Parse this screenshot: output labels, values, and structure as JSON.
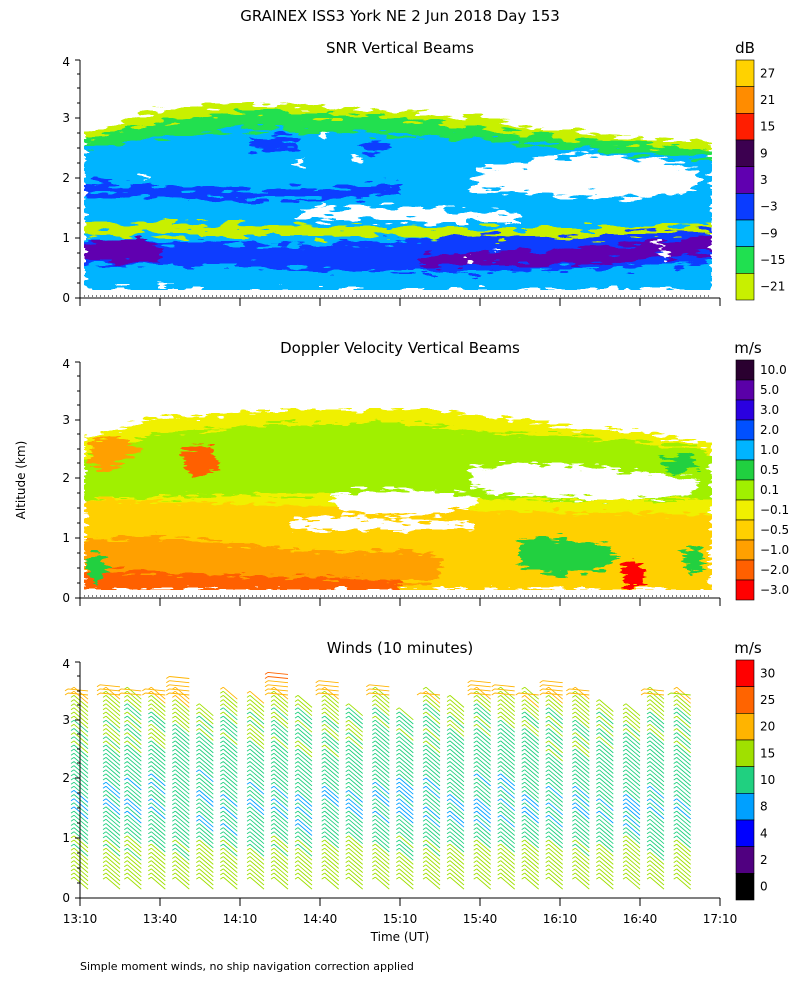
{
  "title": "GRAINEX ISS3 York NE   2 Jun 2018 Day 153",
  "ylabel": "Altitude (km)",
  "xlabel": "Time (UT)",
  "footnote": "Simple moment winds, no ship navigation correction applied",
  "x_ticks": [
    "13:10",
    "13:40",
    "14:10",
    "14:40",
    "15:10",
    "15:40",
    "16:10",
    "16:40",
    "17:10"
  ],
  "y_ticks": [
    "0",
    "1",
    "2",
    "3",
    "4"
  ],
  "chart_data": [
    {
      "type": "heatmap",
      "title": "SNR Vertical Beams",
      "unit": "dB",
      "xlim": [
        "13:10",
        "17:10"
      ],
      "ylim": [
        0,
        4
      ],
      "colorbar": {
        "labels": [
          "27",
          "21",
          "15",
          "9",
          "3",
          "−3",
          "−9",
          "−15",
          "−21"
        ],
        "colors": [
          "#ffd200",
          "#ff8c00",
          "#ff1e00",
          "#3c0050",
          "#6000b0",
          "#0a3cff",
          "#00b4ff",
          "#20e050",
          "#c8f000"
        ]
      },
      "features": [
        {
          "description": "strong low-level band",
          "altitude_km": [
            0.6,
            1.1
          ],
          "snr_db": 3
        },
        {
          "description": "secondary band",
          "altitude_km": [
            1.6,
            1.9
          ],
          "snr_db": 0
        },
        {
          "description": "echo top",
          "altitude_km": 3.1
        }
      ]
    },
    {
      "type": "heatmap",
      "title": "Doppler Velocity Vertical Beams",
      "unit": "m/s",
      "xlim": [
        "13:10",
        "17:10"
      ],
      "ylim": [
        0,
        4
      ],
      "colorbar": {
        "labels": [
          "10.0",
          "5.0",
          "3.0",
          "2.0",
          "1.0",
          "0.5",
          "0.1",
          "−0.1",
          "−0.5",
          "−1.0",
          "−2.0",
          "−3.0"
        ],
        "colors": [
          "#2a0030",
          "#5a00a8",
          "#2a00e0",
          "#0050ff",
          "#00b4ff",
          "#20d040",
          "#a0f000",
          "#f0f000",
          "#ffd000",
          "#ffa000",
          "#ff6000",
          "#ff0000"
        ]
      },
      "features": [
        {
          "description": "dominant weak downdraft",
          "velocity_ms": -0.5
        },
        {
          "description": "strong downdraft",
          "time": "16:38",
          "altitude_km": [
            0.1,
            0.6
          ],
          "velocity_ms": -3.0
        }
      ]
    },
    {
      "type": "scatter",
      "title": "Winds (10 minutes)",
      "unit": "m/s",
      "xlim": [
        "13:10",
        "17:10"
      ],
      "ylim": [
        0,
        4
      ],
      "colorbar": {
        "labels": [
          "30",
          "25",
          "20",
          "15",
          "10",
          "8",
          "4",
          "2",
          "0"
        ],
        "colors": [
          "#ff0000",
          "#ff6400",
          "#ffb400",
          "#a0e000",
          "#20d080",
          "#00a0ff",
          "#0000ff",
          "#500080",
          "#000000"
        ]
      },
      "profiles": [
        "13:13",
        "13:25",
        "13:33",
        "13:42",
        "13:51",
        "14:00",
        "14:09",
        "14:19",
        "14:28",
        "14:37",
        "14:47",
        "14:56",
        "15:06",
        "15:15",
        "15:25",
        "15:34",
        "15:44",
        "15:53",
        "16:02",
        "16:11",
        "16:21",
        "16:30",
        "16:40",
        "16:49",
        "16:59"
      ],
      "speed_by_altitude": [
        {
          "altitude_km": 0.5,
          "speed_ms": 18
        },
        {
          "altitude_km": 1.0,
          "speed_ms": 12
        },
        {
          "altitude_km": 1.5,
          "speed_ms": 10
        },
        {
          "altitude_km": 2.0,
          "speed_ms": 12
        },
        {
          "altitude_km": 2.5,
          "speed_ms": 14
        },
        {
          "altitude_km": 3.0,
          "speed_ms": 15
        },
        {
          "altitude_km": 3.5,
          "speed_ms": 22
        },
        {
          "altitude_km": 4.0,
          "speed_ms": 30
        }
      ]
    }
  ]
}
